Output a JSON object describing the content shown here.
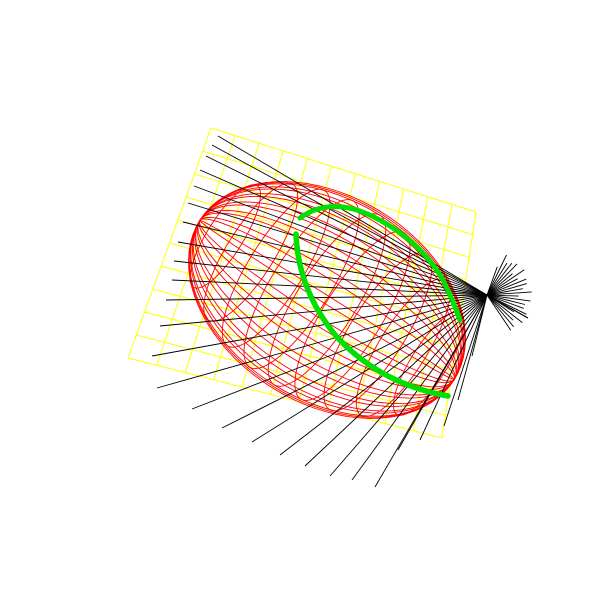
{
  "scene": {
    "background_color": "#ffffff",
    "grid_color": "#ffff00",
    "ellipsoid_color": "#ff0000",
    "arc_color": "#00e000",
    "ray_color": "#000000"
  }
}
